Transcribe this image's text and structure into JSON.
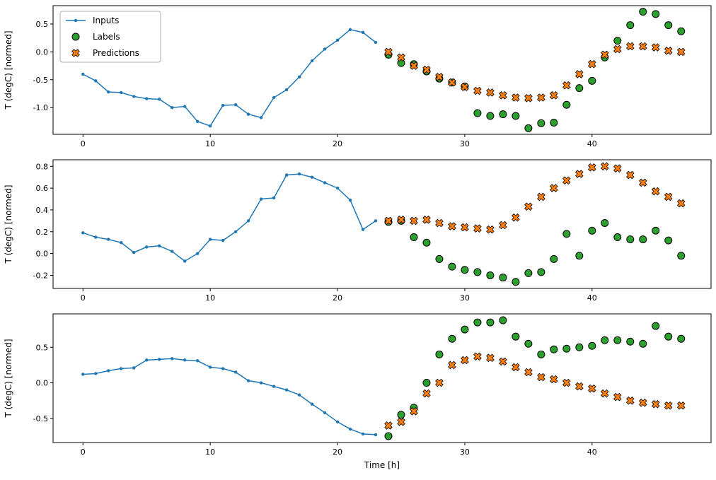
{
  "figure": {
    "background": "#ffffff",
    "axis_color": "#000000",
    "text_color": "#000000",
    "xlabel": "Time [h]",
    "ylabel": "T (degC) [normed]",
    "legend": {
      "position": "upper-left",
      "items": [
        {
          "label": "Inputs",
          "marker": "line-dot",
          "color": "#1f77b4"
        },
        {
          "label": "Labels",
          "marker": "circle",
          "color": "#2ca02c"
        },
        {
          "label": "Predictions",
          "marker": "X",
          "color": "#ff7f0e"
        }
      ]
    }
  },
  "chart_data": [
    {
      "type": "line",
      "title": "",
      "xlabel": "",
      "ylabel": "T (degC) [normed]",
      "xlim": [
        -2.35,
        49.35
      ],
      "ylim": [
        -1.48,
        0.83
      ],
      "xticks": [
        0,
        10,
        20,
        30,
        40
      ],
      "yticks": [
        -1.0,
        -0.5,
        0.0,
        0.5
      ],
      "series": [
        {
          "name": "Inputs",
          "type": "line",
          "marker": "dot",
          "color": "#1f77b4",
          "x_start": 0,
          "values": [
            -0.4,
            -0.52,
            -0.72,
            -0.73,
            -0.8,
            -0.84,
            -0.85,
            -1.0,
            -0.98,
            -1.25,
            -1.33,
            -0.96,
            -0.95,
            -1.12,
            -1.18,
            -0.82,
            -0.68,
            -0.45,
            -0.16,
            0.05,
            0.21,
            0.4,
            0.35,
            0.17
          ]
        },
        {
          "name": "Labels",
          "type": "scatter",
          "marker": "circle",
          "color": "#2ca02c",
          "x_start": 24,
          "values": [
            -0.05,
            -0.2,
            -0.22,
            -0.35,
            -0.48,
            -0.55,
            -0.62,
            -1.1,
            -1.15,
            -1.12,
            -1.15,
            -1.37,
            -1.28,
            -1.27,
            -0.95,
            -0.65,
            -0.52,
            -0.1,
            0.2,
            0.48,
            0.72,
            0.68,
            0.48,
            0.37
          ]
        },
        {
          "name": "Predictions",
          "type": "scatter",
          "marker": "X",
          "color": "#ff7f0e",
          "x_start": 24,
          "values": [
            0.0,
            -0.1,
            -0.25,
            -0.32,
            -0.45,
            -0.55,
            -0.63,
            -0.7,
            -0.73,
            -0.78,
            -0.82,
            -0.83,
            -0.82,
            -0.78,
            -0.6,
            -0.4,
            -0.22,
            -0.05,
            0.05,
            0.1,
            0.1,
            0.08,
            0.02,
            0.0
          ]
        }
      ]
    },
    {
      "type": "line",
      "title": "",
      "xlabel": "",
      "ylabel": "T (degC) [normed]",
      "xlim": [
        -2.35,
        49.35
      ],
      "ylim": [
        -0.32,
        0.86
      ],
      "xticks": [
        0,
        10,
        20,
        30,
        40
      ],
      "yticks": [
        -0.2,
        0.0,
        0.2,
        0.4,
        0.6,
        0.8
      ],
      "series": [
        {
          "name": "Inputs",
          "type": "line",
          "marker": "dot",
          "color": "#1f77b4",
          "x_start": 0,
          "values": [
            0.19,
            0.15,
            0.13,
            0.1,
            0.01,
            0.06,
            0.07,
            0.02,
            -0.07,
            0.0,
            0.13,
            0.12,
            0.2,
            0.3,
            0.5,
            0.51,
            0.72,
            0.73,
            0.7,
            0.65,
            0.6,
            0.49,
            0.22,
            0.3
          ]
        },
        {
          "name": "Labels",
          "type": "scatter",
          "marker": "circle",
          "color": "#2ca02c",
          "x_start": 24,
          "values": [
            0.29,
            0.3,
            0.15,
            0.1,
            -0.05,
            -0.12,
            -0.15,
            -0.17,
            -0.2,
            -0.22,
            -0.26,
            -0.18,
            -0.17,
            -0.05,
            0.18,
            -0.02,
            0.21,
            0.28,
            0.15,
            0.13,
            0.13,
            0.21,
            0.12,
            -0.02
          ]
        },
        {
          "name": "Predictions",
          "type": "scatter",
          "marker": "X",
          "color": "#ff7f0e",
          "x_start": 24,
          "values": [
            0.3,
            0.31,
            0.3,
            0.31,
            0.28,
            0.25,
            0.24,
            0.23,
            0.22,
            0.26,
            0.33,
            0.43,
            0.52,
            0.6,
            0.67,
            0.73,
            0.79,
            0.8,
            0.78,
            0.72,
            0.65,
            0.57,
            0.52,
            0.46
          ]
        }
      ]
    },
    {
      "type": "line",
      "title": "",
      "xlabel": "Time [h]",
      "ylabel": "T (degC) [normed]",
      "xlim": [
        -2.35,
        49.35
      ],
      "ylim": [
        -0.84,
        0.97
      ],
      "xticks": [
        0,
        10,
        20,
        30,
        40
      ],
      "yticks": [
        -0.5,
        0.0,
        0.5
      ],
      "series": [
        {
          "name": "Inputs",
          "type": "line",
          "marker": "dot",
          "color": "#1f77b4",
          "x_start": 0,
          "values": [
            0.12,
            0.13,
            0.17,
            0.2,
            0.21,
            0.32,
            0.33,
            0.34,
            0.32,
            0.31,
            0.22,
            0.2,
            0.15,
            0.03,
            0.0,
            -0.05,
            -0.1,
            -0.17,
            -0.3,
            -0.42,
            -0.55,
            -0.65,
            -0.72,
            -0.73
          ]
        },
        {
          "name": "Labels",
          "type": "scatter",
          "marker": "circle",
          "color": "#2ca02c",
          "x_start": 24,
          "values": [
            -0.75,
            -0.45,
            -0.35,
            0.0,
            0.4,
            0.62,
            0.75,
            0.85,
            0.85,
            0.88,
            0.65,
            0.55,
            0.4,
            0.47,
            0.48,
            0.5,
            0.52,
            0.6,
            0.6,
            0.58,
            0.55,
            0.8,
            0.65,
            0.62
          ]
        },
        {
          "name": "Predictions",
          "type": "scatter",
          "marker": "X",
          "color": "#ff7f0e",
          "x_start": 24,
          "values": [
            -0.6,
            -0.55,
            -0.4,
            -0.15,
            0.0,
            0.25,
            0.32,
            0.37,
            0.35,
            0.3,
            0.22,
            0.15,
            0.08,
            0.05,
            0.0,
            -0.05,
            -0.08,
            -0.15,
            -0.2,
            -0.25,
            -0.28,
            -0.3,
            -0.32,
            -0.32
          ]
        }
      ]
    }
  ]
}
